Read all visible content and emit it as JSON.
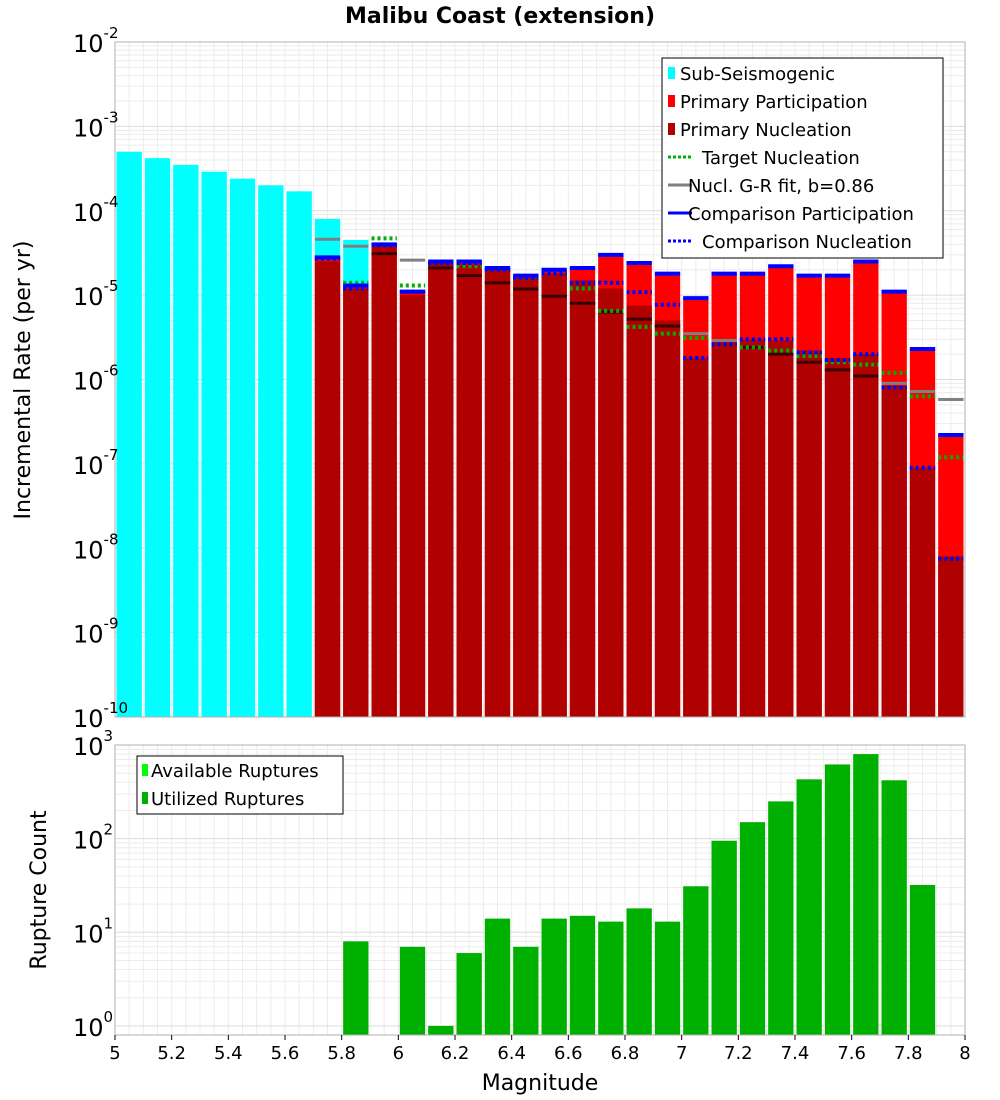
{
  "chart_data": [
    {
      "type": "bar",
      "title": "Malibu Coast (extension)",
      "xlabel": "Magnitude",
      "ylabel": "Incremental Rate (per yr)",
      "yscale": "log",
      "xlim": [
        5,
        8
      ],
      "ylim": [
        1e-10,
        0.01
      ],
      "x_ticks": [
        "5",
        "5.2",
        "5.4",
        "5.6",
        "5.8",
        "6",
        "6.2",
        "6.4",
        "6.6",
        "6.8",
        "7",
        "7.2",
        "7.4",
        "7.6",
        "7.8",
        "8"
      ],
      "y_ticks": [
        {
          "base": "10",
          "exp": "-10"
        },
        {
          "base": "10",
          "exp": "-9"
        },
        {
          "base": "10",
          "exp": "-8"
        },
        {
          "base": "10",
          "exp": "-7"
        },
        {
          "base": "10",
          "exp": "-6"
        },
        {
          "base": "10",
          "exp": "-5"
        },
        {
          "base": "10",
          "exp": "-4"
        },
        {
          "base": "10",
          "exp": "-3"
        },
        {
          "base": "10",
          "exp": "-2"
        }
      ],
      "grid": true,
      "legend_position": "top-right",
      "legend": [
        {
          "label": "Sub-Seismogenic",
          "color": "#00ffff",
          "style": "bar"
        },
        {
          "label": "Primary Participation",
          "color": "#ff0000",
          "style": "bar"
        },
        {
          "label": "Primary Nucleation",
          "color": "#b00000",
          "style": "bar"
        },
        {
          "label": "Target Nucleation",
          "color": "#00b000",
          "style": "dotted"
        },
        {
          "label": "Nucl. G-R fit, b=0.86",
          "color": "#808080",
          "style": "solid"
        },
        {
          "label": "Comparison Participation",
          "color": "#0000ff",
          "style": "solid"
        },
        {
          "label": "Comparison Nucleation",
          "color": "#0000ff",
          "style": "dotted"
        }
      ],
      "x": [
        5.05,
        5.15,
        5.25,
        5.35,
        5.45,
        5.55,
        5.65,
        5.75,
        5.85,
        5.95,
        6.05,
        6.15,
        6.25,
        6.35,
        6.45,
        6.55,
        6.65,
        6.75,
        6.85,
        6.95,
        7.05,
        7.15,
        7.25,
        7.35,
        7.45,
        7.55,
        7.65,
        7.75,
        7.85,
        7.95
      ],
      "series": [
        {
          "name": "Sub-Seismogenic",
          "values": [
            0.0005,
            0.00042,
            0.00035,
            0.00029,
            0.00024,
            0.0002,
            0.00017,
            8e-05,
            4.5e-05,
            null,
            null,
            null,
            null,
            null,
            null,
            null,
            null,
            null,
            null,
            null,
            null,
            null,
            null,
            null,
            null,
            null,
            null,
            null,
            null,
            null
          ]
        },
        {
          "name": "Primary Participation",
          "values": [
            null,
            null,
            null,
            null,
            null,
            null,
            null,
            2.8e-05,
            1.3e-05,
            4e-05,
            1.1e-05,
            2.5e-05,
            2.5e-05,
            2.1e-05,
            1.7e-05,
            2e-05,
            2.1e-05,
            3e-05,
            2.4e-05,
            1.8e-05,
            9.2e-06,
            1.8e-05,
            1.8e-05,
            2.2e-05,
            1.7e-05,
            1.7e-05,
            2.5e-05,
            1.1e-05,
            2.3e-06,
            2.2e-07
          ]
        },
        {
          "name": "Primary Nucleation",
          "values": [
            null,
            null,
            null,
            null,
            null,
            null,
            null,
            2.5e-05,
            1.2e-05,
            3.8e-05,
            1e-05,
            2.4e-05,
            2.3e-05,
            2e-05,
            1.6e-05,
            1.8e-05,
            1.5e-05,
            1.2e-05,
            7.5e-06,
            5e-06,
            1.8e-06,
            2.8e-06,
            3e-06,
            2.9e-06,
            2.2e-06,
            1.8e-06,
            2e-06,
            8.5e-07,
            9e-08,
            8e-09
          ]
        },
        {
          "name": "Target Nucleation",
          "values": [
            null,
            null,
            null,
            null,
            null,
            null,
            null,
            2.7e-05,
            1.4e-05,
            4.7e-05,
            1.3e-05,
            2.4e-05,
            2.2e-05,
            2e-05,
            1.6e-05,
            1.8e-05,
            1.2e-05,
            6.5e-06,
            4.2e-06,
            3.5e-06,
            3.1e-06,
            2.6e-06,
            2.4e-06,
            2.2e-06,
            1.9e-06,
            1.6e-06,
            1.5e-06,
            1.2e-06,
            6.3e-07,
            1.2e-07
          ]
        },
        {
          "name": "Nucl. G-R fit, b=0.86",
          "values": [
            null,
            null,
            null,
            null,
            null,
            null,
            null,
            4.6e-05,
            3.8e-05,
            3.1e-05,
            2.6e-05,
            2.1e-05,
            1.7e-05,
            1.4e-05,
            1.18e-05,
            9.7e-06,
            8e-06,
            6.3e-06,
            5.2e-06,
            4.3e-06,
            3.5e-06,
            2.9e-06,
            2.4e-06,
            2e-06,
            1.6e-06,
            1.3e-06,
            1.1e-06,
            9e-07,
            7.2e-07,
            5.8e-07
          ]
        },
        {
          "name": "Comparison Participation",
          "values": [
            null,
            null,
            null,
            null,
            null,
            null,
            null,
            2.8e-05,
            1.3e-05,
            4e-05,
            1.1e-05,
            2.5e-05,
            2.5e-05,
            2.1e-05,
            1.7e-05,
            2e-05,
            2.1e-05,
            3e-05,
            2.4e-05,
            1.8e-05,
            9.2e-06,
            1.8e-05,
            1.8e-05,
            2.2e-05,
            1.7e-05,
            1.7e-05,
            2.5e-05,
            1.1e-05,
            2.3e-06,
            2.2e-07
          ]
        },
        {
          "name": "Comparison Nucleation",
          "values": [
            null,
            null,
            null,
            null,
            null,
            null,
            null,
            2.7e-05,
            1.2e-05,
            3.9e-05,
            1.1e-05,
            2.4e-05,
            2.4e-05,
            2e-05,
            1.6e-05,
            1.8e-05,
            1.4e-05,
            1.4e-05,
            1.08e-05,
            7.7e-06,
            1.8e-06,
            2.6e-06,
            3e-06,
            3e-06,
            2.1e-06,
            1.7e-06,
            2e-06,
            8e-07,
            9e-08,
            7.5e-09
          ]
        }
      ]
    },
    {
      "type": "bar",
      "xlabel": "Magnitude",
      "ylabel": "Rupture Count",
      "yscale": "log",
      "xlim": [
        5,
        8
      ],
      "ylim": [
        0.8,
        1000
      ],
      "y_ticks": [
        {
          "base": "10",
          "exp": "0"
        },
        {
          "base": "10",
          "exp": "1"
        },
        {
          "base": "10",
          "exp": "2"
        },
        {
          "base": "10",
          "exp": "3"
        }
      ],
      "grid": true,
      "legend_position": "top-left",
      "legend": [
        {
          "label": "Available Ruptures",
          "color": "#00ff00",
          "style": "bar"
        },
        {
          "label": "Utilized Ruptures",
          "color": "#00b000",
          "style": "bar"
        }
      ],
      "x": [
        5.85,
        6.05,
        6.15,
        6.25,
        6.35,
        6.45,
        6.55,
        6.65,
        6.75,
        6.85,
        6.95,
        7.05,
        7.15,
        7.25,
        7.35,
        7.45,
        7.55,
        7.65,
        7.75,
        7.85
      ],
      "series": [
        {
          "name": "Utilized Ruptures",
          "values": [
            8,
            7,
            1,
            6,
            14,
            7,
            14,
            15,
            13,
            18,
            13,
            31,
            95,
            150,
            250,
            430,
            620,
            800,
            420,
            32
          ]
        }
      ]
    }
  ]
}
